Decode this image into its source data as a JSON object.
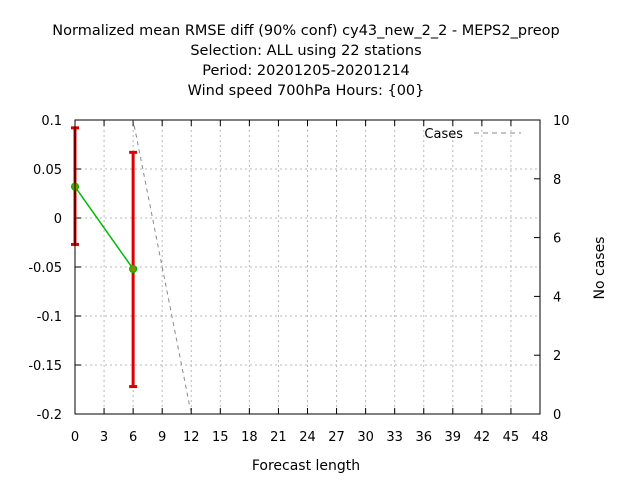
{
  "chart_data": {
    "type": "line",
    "title_lines": [
      "Normalized mean RMSE diff (90% conf) cy43_new_2_2 - MEPS2_preop",
      "Selection: ALL using    22 stations",
      "Period: 20201205-20201214",
      "Wind speed 700hPa   Hours: {00}"
    ],
    "xlabel": "Forecast length",
    "ylabel_right": "No cases",
    "xlim": [
      0,
      48
    ],
    "ylim": [
      -0.2,
      0.1
    ],
    "y2lim": [
      0,
      10
    ],
    "x_ticks": [
      "0",
      "3",
      "6",
      "9",
      "12",
      "15",
      "18",
      "21",
      "24",
      "27",
      "30",
      "33",
      "36",
      "39",
      "42",
      "45",
      "48"
    ],
    "y_ticks": [
      "0.1",
      "0.05",
      "0",
      "-0.05",
      "-0.1",
      "-0.15",
      "-0.2"
    ],
    "y2_ticks": [
      "10",
      "8",
      "6",
      "4",
      "2",
      "0"
    ],
    "grid": true,
    "legend": {
      "position": "top-right",
      "entries": [
        "Cases"
      ]
    },
    "series": [
      {
        "role": "rmse_diff",
        "color": "#00bb00",
        "marker_color": "#8b8b00",
        "x": [
          0,
          6
        ],
        "y": [
          0.032,
          -0.052
        ],
        "err_low": [
          -0.027,
          -0.172
        ],
        "err_high": [
          0.092,
          0.067
        ],
        "err_color": "#dd0000"
      },
      {
        "name": "Cases",
        "axis": "y2",
        "color": "#888888",
        "style": "dashed",
        "x": [
          0,
          6,
          12,
          48
        ],
        "y": [
          10,
          10,
          0,
          0
        ]
      }
    ]
  }
}
